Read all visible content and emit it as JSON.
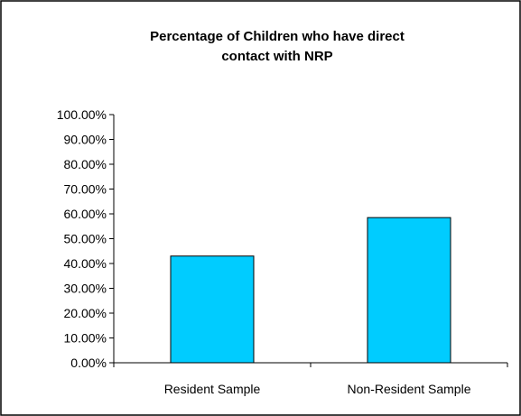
{
  "chart_data": {
    "type": "bar",
    "title_lines": [
      "Percentage of Children who have direct",
      "contact with NRP"
    ],
    "categories": [
      "Resident Sample",
      "Non-Resident Sample"
    ],
    "values": [
      0.43,
      0.585
    ],
    "ylim": [
      0,
      1
    ],
    "yticks": [
      "0.00%",
      "10.00%",
      "20.00%",
      "30.00%",
      "40.00%",
      "50.00%",
      "60.00%",
      "70.00%",
      "80.00%",
      "90.00%",
      "100.00%"
    ],
    "grid": false,
    "legend": false,
    "bar_color": "#00ccff",
    "xlabel": "",
    "ylabel": ""
  }
}
